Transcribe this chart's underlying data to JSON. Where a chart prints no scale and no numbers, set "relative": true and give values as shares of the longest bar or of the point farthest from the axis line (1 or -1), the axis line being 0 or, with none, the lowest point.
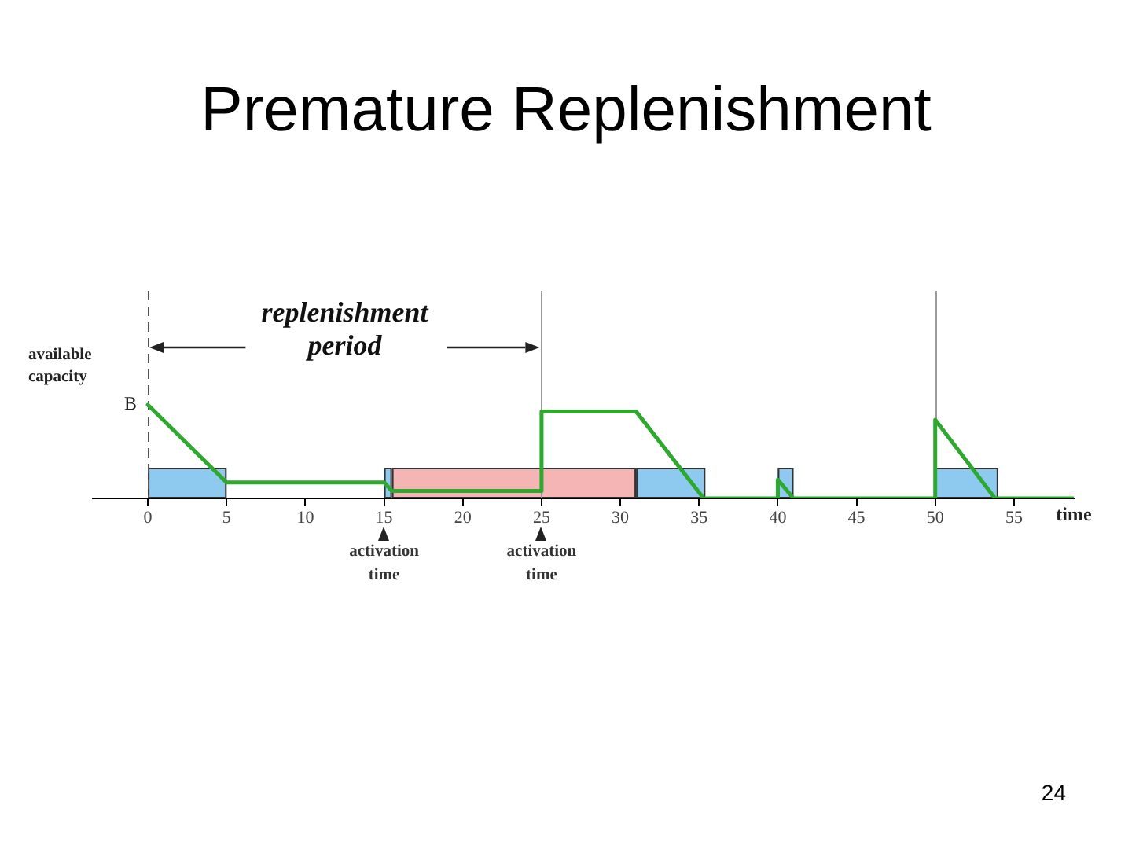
{
  "chart_data": {
    "type": "line",
    "title": "Premature Replenishment",
    "xlabel": "time",
    "ylabel": "available capacity",
    "relative": true,
    "x": [
      0,
      5,
      15,
      15.5,
      25,
      25,
      31,
      35.3,
      40,
      40,
      41,
      50,
      50,
      53.8,
      58.8
    ],
    "values": [
      1,
      0.17,
      0.17,
      0.08,
      0.08,
      0.93,
      0.93,
      0,
      0,
      0.2,
      0,
      0,
      0.84,
      0,
      0
    ],
    "color": "#2ea82e",
    "marker": "none",
    "line_style": "solid",
    "xlim": [
      -3.5,
      58.8
    ],
    "xticks": [
      0,
      5,
      10,
      15,
      20,
      25,
      30,
      35,
      40,
      45,
      50,
      55
    ],
    "grid": false,
    "legend": false,
    "ref_lines": [
      {
        "axis": "x",
        "value": 0,
        "color": "#555555",
        "line_style": "dashed"
      },
      {
        "axis": "x",
        "value": 25,
        "color": "#9a9a9a"
      },
      {
        "axis": "x",
        "value": 50,
        "color": "#9a9a9a"
      }
    ],
    "bands": [
      {
        "axis": "x",
        "from": 0,
        "to": 5,
        "color": "#8ecaf0"
      },
      {
        "axis": "x",
        "from": 15,
        "to": 15.5,
        "color": "#8ecaf0"
      },
      {
        "axis": "x",
        "from": 15.5,
        "to": 31,
        "color": "#f5b5b5"
      },
      {
        "axis": "x",
        "from": 31,
        "to": 35.4,
        "color": "#8ecaf0"
      },
      {
        "axis": "x",
        "from": 40,
        "to": 41,
        "color": "#8ecaf0"
      },
      {
        "axis": "x",
        "from": 50,
        "to": 54,
        "color": "#8ecaf0"
      }
    ],
    "annotations": [
      {
        "text": "B",
        "x": 0,
        "y": 1
      },
      "replenishment period",
      {
        "text": "activation time",
        "x": 15,
        "y": 0
      },
      {
        "text": "activation time",
        "x": 25,
        "y": 0
      },
      "24"
    ]
  }
}
